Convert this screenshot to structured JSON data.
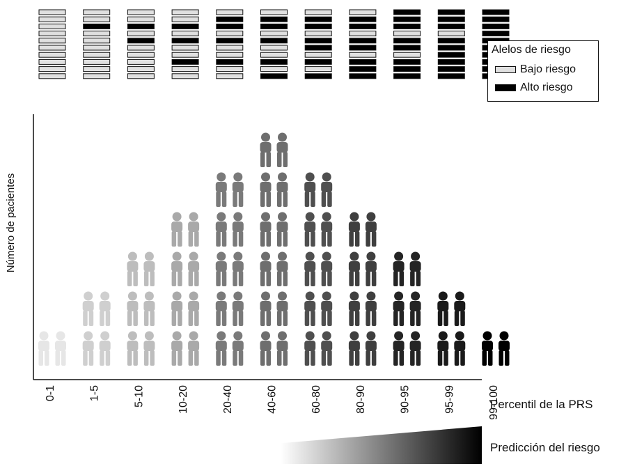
{
  "chart_data": {
    "type": "pictograph",
    "xlabel": "Percentil de la PRS",
    "ylabel": "Número de pacientes",
    "gradient_label": "Predicción del riesgo",
    "categories": [
      "0-1",
      "1-5",
      "5-10",
      "10-20",
      "20-40",
      "40-60",
      "60-80",
      "80-90",
      "90-95",
      "95-99",
      "99-100"
    ],
    "patient_columns": [
      1,
      2,
      3,
      4,
      5,
      6,
      5,
      4,
      3,
      2,
      1
    ],
    "figures_per_row": 2,
    "figure_shades": [
      "#e6e6e6",
      "#cfcfcf",
      "#bdbdbd",
      "#a9a9a9",
      "#7a7a7a",
      "#6e6e6e",
      "#4f4f4f",
      "#3f3f3f",
      "#242424",
      "#1a1a1a",
      "#000000"
    ],
    "alleles_per_column": 10,
    "high_risk_alleles": [
      0,
      1,
      2,
      3,
      4,
      5,
      6,
      7,
      8,
      9,
      10
    ],
    "allele_colors": {
      "low": "#e0e0e0",
      "high": "#000000"
    },
    "legend": {
      "title": "Alelos de riesgo",
      "items": [
        {
          "label": "Bajo riesgo",
          "color": "#e0e0e0"
        },
        {
          "label": "Alto riesgo",
          "color": "#000000"
        }
      ],
      "position": "top-right"
    }
  }
}
